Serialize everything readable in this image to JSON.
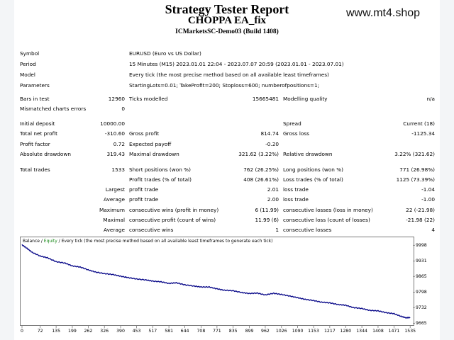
{
  "header": {
    "title": "Strategy Tester Report",
    "ea_name": "CHOPPA EA_fix",
    "server_build": "ICMarketsSC-Demo03 (Build 1408)",
    "watermark": "www.mt4.shop"
  },
  "params": [
    {
      "label": "Symbol",
      "value": "EURUSD (Euro vs US Dollar)"
    },
    {
      "label": "Period",
      "value": "15 Minutes (M15) 2023.01.01 22:04 - 2023.07.07 20:59 (2023.01.01 - 2023.07.01)"
    },
    {
      "label": "Model",
      "value": "Every tick (the most precise method based on all available least timeframes)"
    },
    {
      "label": "Parameters",
      "value": "StartingLots=0.01; TakeProfit=200; Stoploss=600; numberofpositions=1;"
    }
  ],
  "stats": {
    "bars_in_test_label": "Bars in test",
    "bars_in_test": "12960",
    "ticks_modelled_label": "Ticks modelled",
    "ticks_modelled": "15665481",
    "modelling_quality_label": "Modelling quality",
    "modelling_quality": "n/a",
    "mismatched_label": "Mismatched charts errors",
    "mismatched": "0",
    "initial_deposit_label": "Initial deposit",
    "initial_deposit": "10000.00",
    "spread_label": "Spread",
    "spread": "Current (18)",
    "total_net_profit_label": "Total net profit",
    "total_net_profit": "-310.60",
    "gross_profit_label": "Gross profit",
    "gross_profit": "814.74",
    "gross_loss_label": "Gross loss",
    "gross_loss": "-1125.34",
    "profit_factor_label": "Profit factor",
    "profit_factor": "0.72",
    "expected_payoff_label": "Expected payoff",
    "expected_payoff": "-0.20",
    "absolute_drawdown_label": "Absolute drawdown",
    "absolute_drawdown": "319.43",
    "maximal_drawdown_label": "Maximal drawdown",
    "maximal_drawdown": "321.62 (3.22%)",
    "relative_drawdown_label": "Relative drawdown",
    "relative_drawdown": "3.22% (321.62)",
    "total_trades_label": "Total trades",
    "total_trades": "1533",
    "short_positions_label": "Short positions (won %)",
    "short_positions": "762 (26.25%)",
    "long_positions_label": "Long positions (won %)",
    "long_positions": "771 (26.98%)",
    "profit_trades_label": "Profit trades (% of total)",
    "profit_trades": "408 (26.61%)",
    "loss_trades_label": "Loss trades (% of total)",
    "loss_trades": "1125 (73.39%)",
    "largest_label": "Largest",
    "largest_profit_label": "profit trade",
    "largest_profit": "2.01",
    "largest_loss_label": "loss trade",
    "largest_loss": "-1.04",
    "average_label": "Average",
    "average_profit_label": "profit trade",
    "average_profit": "2.00",
    "average_loss_label": "loss trade",
    "average_loss": "-1.00",
    "maximum_label": "Maximum",
    "max_consec_wins_label": "consecutive wins (profit in money)",
    "max_consec_wins": "6 (11.99)",
    "max_consec_losses_label": "consecutive losses (loss in money)",
    "max_consec_losses": "22 (-21.98)",
    "maximal_label": "Maximal",
    "maximal_consec_profit_label": "consecutive profit (count of wins)",
    "maximal_consec_profit": "11.99 (6)",
    "maximal_consec_loss_label": "consecutive loss (count of losses)",
    "maximal_consec_loss": "-21.98 (22)",
    "average2_label": "Average",
    "avg_consec_wins_label": "consecutive wins",
    "avg_consec_wins": "1",
    "avg_consec_losses_label": "consecutive losses",
    "avg_consec_losses": "4"
  },
  "chart_data": {
    "type": "line",
    "legend_balance": "Balance",
    "legend_sep": " / ",
    "legend_equity": "Equity",
    "legend_desc": " / Every tick (the most precise method based on all available least timeframes to generate each tick)",
    "yticks": [
      "9998",
      "9931",
      "9865",
      "9798",
      "9732",
      "9665"
    ],
    "ytick_values": [
      9998,
      9931,
      9865,
      9798,
      9732,
      9665
    ],
    "xticks": [
      "0",
      "72",
      "135",
      "199",
      "262",
      "326",
      "390",
      "453",
      "517",
      "581",
      "644",
      "708",
      "771",
      "835",
      "899",
      "962",
      "1026",
      "1090",
      "1153",
      "1217",
      "1280",
      "1344",
      "1408",
      "1471",
      "1535"
    ],
    "xtick_values": [
      0,
      72,
      135,
      199,
      262,
      326,
      390,
      453,
      517,
      581,
      644,
      708,
      771,
      835,
      899,
      962,
      1026,
      1090,
      1153,
      1217,
      1280,
      1344,
      1408,
      1471,
      1535
    ],
    "ylim": [
      9660,
      10005
    ],
    "xlim": [
      0,
      1540
    ],
    "balance_color": "#0b0b8a",
    "equity_color": "#1a8a1a",
    "series": [
      {
        "name": "Balance",
        "x": [
          0,
          20,
          40,
          72,
          100,
          135,
          170,
          199,
          230,
          262,
          290,
          326,
          360,
          390,
          420,
          453,
          490,
          517,
          550,
          581,
          610,
          644,
          680,
          708,
          740,
          771,
          800,
          835,
          870,
          899,
          930,
          962,
          995,
          1026,
          1060,
          1090,
          1120,
          1153,
          1185,
          1217,
          1250,
          1280,
          1310,
          1344,
          1375,
          1408,
          1440,
          1471,
          1500,
          1520,
          1535
        ],
        "values": [
          10000,
          9985,
          9968,
          9952,
          9945,
          9928,
          9922,
          9910,
          9905,
          9893,
          9884,
          9877,
          9873,
          9866,
          9860,
          9854,
          9850,
          9845,
          9842,
          9835,
          9838,
          9829,
          9824,
          9820,
          9820,
          9812,
          9806,
          9804,
          9796,
          9792,
          9794,
          9786,
          9793,
          9788,
          9781,
          9774,
          9767,
          9762,
          9755,
          9752,
          9745,
          9742,
          9732,
          9728,
          9720,
          9718,
          9710,
          9706,
          9694,
          9688,
          9690
        ]
      }
    ]
  }
}
